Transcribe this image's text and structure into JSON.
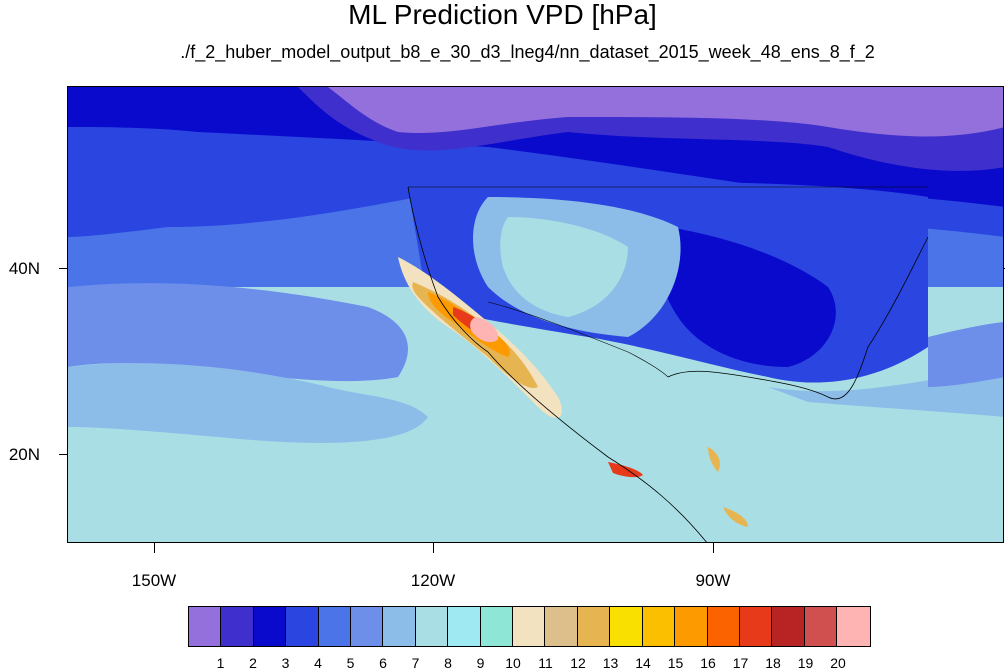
{
  "title": "ML Prediction VPD [hPa]",
  "subtitle": "./f_2_huber_model_output_b8_e_30_d3_lneg4/nn_dataset_2015_week_48_ens_8_f_2",
  "map": {
    "y_ticks": [
      {
        "label": "40N",
        "lat": 40
      },
      {
        "label": "20N",
        "lat": 20
      }
    ],
    "x_ticks": [
      {
        "label": "150W",
        "lon": -150
      },
      {
        "label": "120W",
        "lon": -120
      },
      {
        "label": "90W",
        "lon": -90
      }
    ]
  },
  "colorbar": {
    "colors": [
      "#9370db",
      "#3f2fcc",
      "#0a0acd",
      "#2b46e0",
      "#4a74e8",
      "#6d8fea",
      "#8cbde8",
      "#a9dfe4",
      "#9fe9f2",
      "#8de6d6",
      "#f2e2c0",
      "#ddbf8c",
      "#e6b552",
      "#f9e000",
      "#fcbf00",
      "#fc9a00",
      "#fb6200",
      "#e63a1a",
      "#b82323",
      "#d05050",
      "#ffb4b4"
    ],
    "labels": [
      "1",
      "2",
      "3",
      "4",
      "5",
      "6",
      "7",
      "8",
      "9",
      "10",
      "11",
      "12",
      "13",
      "14",
      "15",
      "16",
      "17",
      "18",
      "19",
      "20"
    ]
  }
}
